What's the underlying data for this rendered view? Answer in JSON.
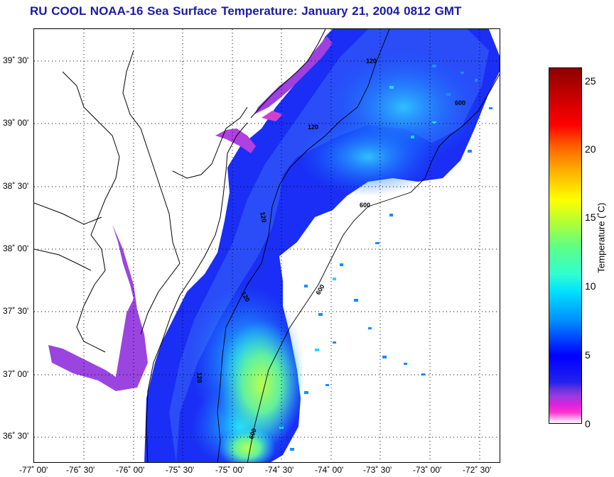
{
  "title": "RU COOL  NOAA-16  Sea Surface Temperature:  January 21, 2004 0812 GMT",
  "latitude_labels": [
    "39˚ 30'",
    "39˚ 00'",
    "38˚ 30'",
    "38˚ 00'",
    "37˚ 30'",
    "37˚ 00'",
    "36˚ 30'"
  ],
  "longitude_labels": [
    "-77˚ 00'",
    "-76˚ 30'",
    "-76˚ 00'",
    "-75˚ 30'",
    "-75˚ 00'",
    "-74˚ 30'",
    "-74˚ 00'",
    "-73˚ 30'",
    "-73˚ 00'",
    "-72˚ 30'"
  ],
  "isobath_labels": [
    "120",
    "120",
    "120",
    "120",
    "120",
    "600",
    "600",
    "600",
    "600"
  ],
  "colorbar": {
    "label": "Temperature (˚C)",
    "ticks": [
      "25",
      "20",
      "15",
      "10",
      "5",
      "0"
    ],
    "range": [
      0,
      26
    ],
    "colors": {
      "cold": "#ff33cc",
      "mid": "#0000ff",
      "warm": "#ffff00",
      "hot": "#8b0000"
    }
  }
}
